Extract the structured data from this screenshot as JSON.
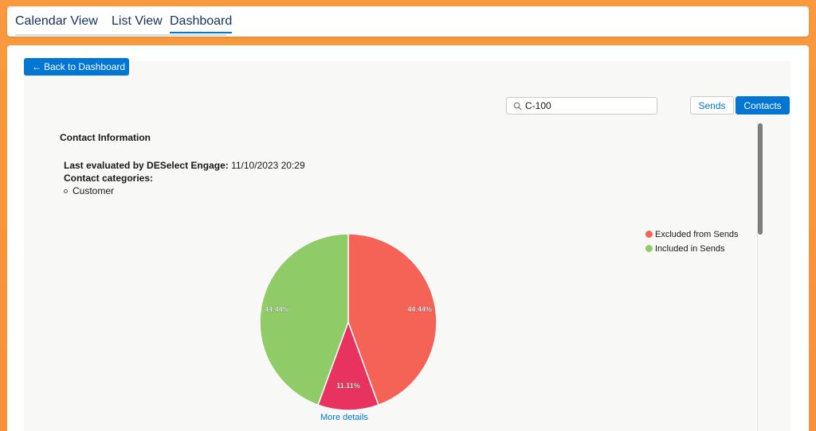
{
  "tabs": [
    {
      "label": "Calendar View"
    },
    {
      "label": "List View"
    },
    {
      "label": "Dashboard",
      "active": true
    }
  ],
  "back_button": {
    "arrow": "←",
    "label": "Back to Dashboard"
  },
  "search": {
    "value": "C-100",
    "icon": "search-icon"
  },
  "toggle": {
    "sends_label": "Sends",
    "contacts_label": "Contacts",
    "active": "Contacts"
  },
  "contact_info": {
    "title": "Contact Information",
    "last_evaluated_label": "Last evaluated by DESelect Engage:",
    "last_evaluated_value": "11/10/2023 20:29",
    "categories_label": "Contact categories:",
    "categories": [
      "Customer"
    ]
  },
  "legend": [
    {
      "label": "Excluded from Sends",
      "color": "#f46355"
    },
    {
      "label": "Included in Sends",
      "color": "#8fcb66"
    }
  ],
  "more_details_label": "More details",
  "colors": {
    "accent": "#0176d3",
    "excluded": "#f46355",
    "other": "#e8325f",
    "included": "#8fcb66"
  },
  "chart_data": {
    "type": "pie",
    "slices": [
      {
        "label": "",
        "value": 44.44,
        "display": "44.44%",
        "color": "#f46355"
      },
      {
        "label": "",
        "value": 11.11,
        "display": "11.11%",
        "color": "#e8325f"
      },
      {
        "label": "",
        "value": 44.44,
        "display": "44.44%",
        "color": "#8fcb66"
      }
    ],
    "legend_position": "right"
  }
}
